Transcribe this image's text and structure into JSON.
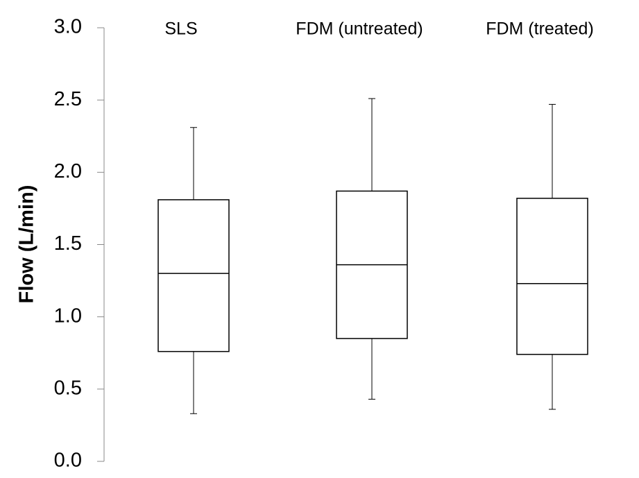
{
  "chart_data": {
    "type": "box",
    "y_label": "Flow (L/min)",
    "categories": [
      "SLS",
      "FDM (untreated)",
      "FDM (treated)"
    ],
    "min": [
      0.33,
      0.43,
      0.36
    ],
    "q1": [
      0.76,
      0.85,
      0.74
    ],
    "median": [
      1.3,
      1.36,
      1.23
    ],
    "q3": [
      1.81,
      1.87,
      1.82
    ],
    "max": [
      2.31,
      2.51,
      2.47
    ],
    "ylim": [
      0,
      3
    ],
    "yticks": [
      {
        "value": 0,
        "label": "0.0"
      },
      0.5,
      {
        "value": 1,
        "label": "1.0"
      },
      1.5,
      {
        "value": 2,
        "label": "2.0"
      },
      2.5,
      {
        "value": 3,
        "label": "3.0"
      }
    ],
    "color": "#000000"
  }
}
